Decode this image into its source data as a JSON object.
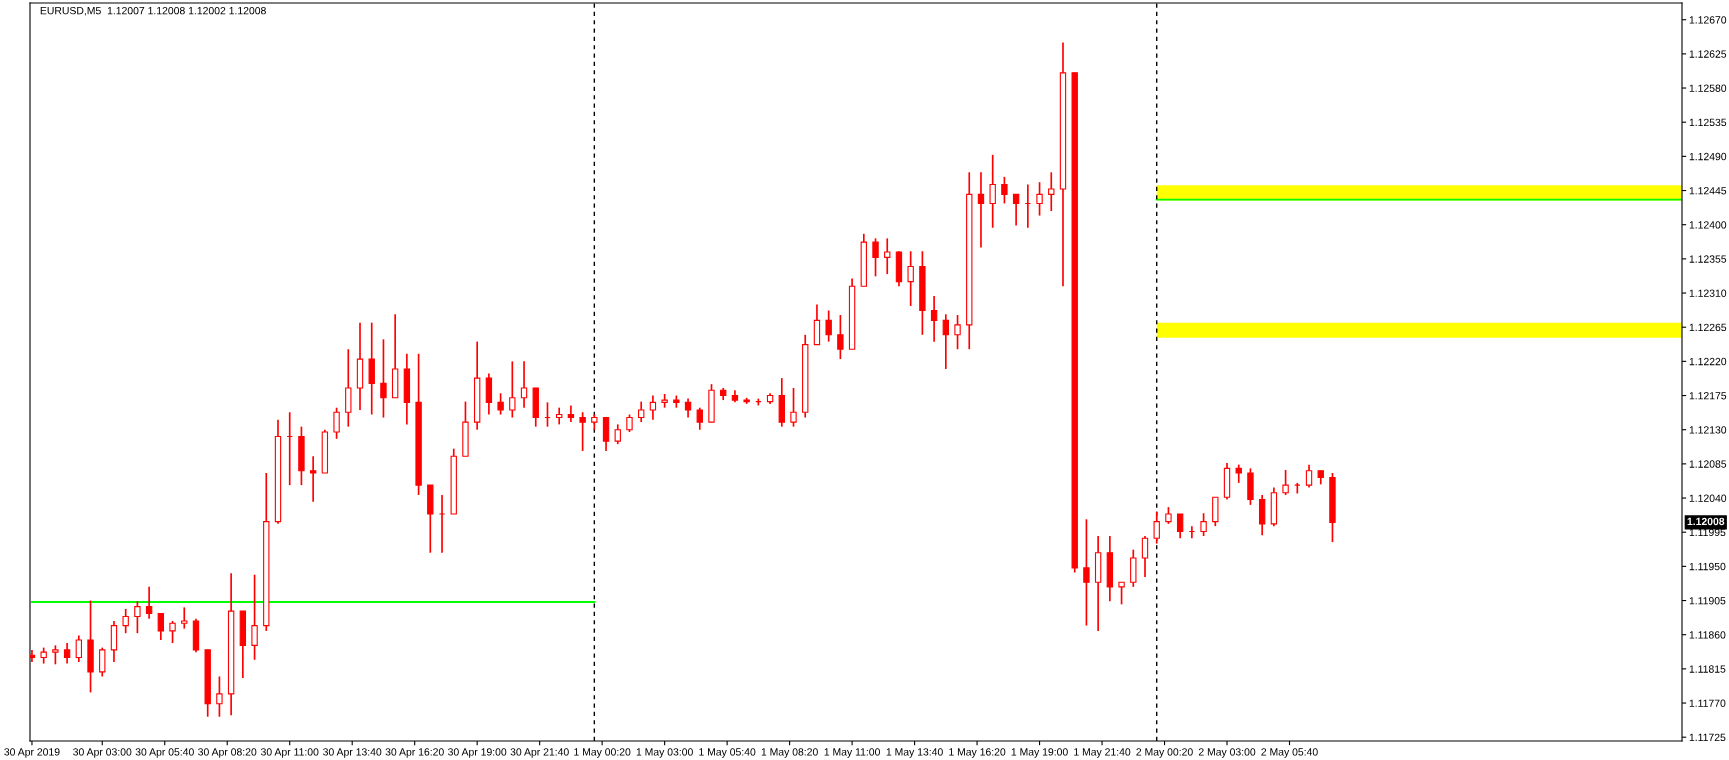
{
  "chart_data": {
    "type": "candlestick",
    "title": "EURUSD,M5  1.12007 1.12008 1.12002 1.12008",
    "color": "#ff0000",
    "x": [
      "2019-04-30T00:00",
      "2019-04-30T00:30",
      "2019-04-30T01:00",
      "2019-04-30T01:30",
      "2019-04-30T02:00",
      "2019-04-30T02:30",
      "2019-04-30T03:00",
      "2019-04-30T03:30",
      "2019-04-30T04:00",
      "2019-04-30T04:30",
      "2019-04-30T05:00",
      "2019-04-30T05:30",
      "2019-04-30T06:00",
      "2019-04-30T06:30",
      "2019-04-30T07:00",
      "2019-04-30T07:30",
      "2019-04-30T08:00",
      "2019-04-30T08:30",
      "2019-04-30T09:00",
      "2019-04-30T09:30",
      "2019-04-30T10:00",
      "2019-04-30T10:30",
      "2019-04-30T11:00",
      "2019-04-30T11:30",
      "2019-04-30T12:00",
      "2019-04-30T12:30",
      "2019-04-30T13:00",
      "2019-04-30T13:30",
      "2019-04-30T14:00",
      "2019-04-30T14:30",
      "2019-04-30T15:00",
      "2019-04-30T15:30",
      "2019-04-30T16:00",
      "2019-04-30T16:30",
      "2019-04-30T17:00",
      "2019-04-30T17:30",
      "2019-04-30T18:00",
      "2019-04-30T18:30",
      "2019-04-30T19:00",
      "2019-04-30T19:30",
      "2019-04-30T20:00",
      "2019-04-30T20:30",
      "2019-04-30T21:00",
      "2019-04-30T21:30",
      "2019-04-30T22:00",
      "2019-04-30T22:30",
      "2019-04-30T23:00",
      "2019-04-30T23:30",
      "2019-05-01T00:00",
      "2019-05-01T00:30",
      "2019-05-01T01:00",
      "2019-05-01T01:30",
      "2019-05-01T02:00",
      "2019-05-01T02:30",
      "2019-05-01T03:00",
      "2019-05-01T03:30",
      "2019-05-01T04:00",
      "2019-05-01T04:30",
      "2019-05-01T05:00",
      "2019-05-01T05:30",
      "2019-05-01T06:00",
      "2019-05-01T06:30",
      "2019-05-01T07:00",
      "2019-05-01T07:30",
      "2019-05-01T08:00",
      "2019-05-01T08:30",
      "2019-05-01T09:00",
      "2019-05-01T09:30",
      "2019-05-01T10:00",
      "2019-05-01T10:30",
      "2019-05-01T11:00",
      "2019-05-01T11:30",
      "2019-05-01T12:00",
      "2019-05-01T12:30",
      "2019-05-01T13:00",
      "2019-05-01T13:30",
      "2019-05-01T14:00",
      "2019-05-01T14:30",
      "2019-05-01T15:00",
      "2019-05-01T15:30",
      "2019-05-01T16:00",
      "2019-05-01T16:30",
      "2019-05-01T17:00",
      "2019-05-01T17:30",
      "2019-05-01T18:00",
      "2019-05-01T18:30",
      "2019-05-01T19:00",
      "2019-05-01T19:30",
      "2019-05-01T20:00",
      "2019-05-01T20:30",
      "2019-05-01T21:00",
      "2019-05-01T21:30",
      "2019-05-01T22:00",
      "2019-05-01T22:30",
      "2019-05-01T23:00",
      "2019-05-01T23:30",
      "2019-05-02T00:00",
      "2019-05-02T00:30",
      "2019-05-02T01:00",
      "2019-05-02T01:30",
      "2019-05-02T02:00",
      "2019-05-02T02:30",
      "2019-05-02T03:00",
      "2019-05-02T03:30",
      "2019-05-02T04:00",
      "2019-05-02T04:30",
      "2019-05-02T05:00",
      "2019-05-02T05:30",
      "2019-05-02T06:00",
      "2019-05-02T06:30",
      "2019-05-02T07:00",
      "2019-05-02T07:30"
    ],
    "ohlc": [
      [
        1.11833,
        1.1184,
        1.11824,
        1.1183
      ],
      [
        1.1183,
        1.11843,
        1.11822,
        1.11837
      ],
      [
        1.11837,
        1.11846,
        1.11821,
        1.1184
      ],
      [
        1.1184,
        1.11849,
        1.11822,
        1.1183
      ],
      [
        1.1183,
        1.11859,
        1.11824,
        1.11853
      ],
      [
        1.11853,
        1.11905,
        1.11784,
        1.11811
      ],
      [
        1.11811,
        1.11843,
        1.11805,
        1.1184
      ],
      [
        1.1184,
        1.11878,
        1.11824,
        1.11872
      ],
      [
        1.11872,
        1.11894,
        1.11862,
        1.11884
      ],
      [
        1.11884,
        1.11904,
        1.11862,
        1.11897
      ],
      [
        1.11897,
        1.11923,
        1.11881,
        1.11888
      ],
      [
        1.11888,
        1.11888,
        1.11853,
        1.11865
      ],
      [
        1.11865,
        1.11878,
        1.11849,
        1.11875
      ],
      [
        1.11875,
        1.11896,
        1.11868,
        1.11878
      ],
      [
        1.11878,
        1.11881,
        1.11837,
        1.1184
      ],
      [
        1.1184,
        1.1184,
        1.11752,
        1.11769
      ],
      [
        1.11769,
        1.11805,
        1.11752,
        1.11782
      ],
      [
        1.11782,
        1.11941,
        1.11754,
        1.11891
      ],
      [
        1.11891,
        1.11891,
        1.11803,
        1.11846
      ],
      [
        1.11846,
        1.11939,
        1.11827,
        1.11872
      ],
      [
        1.11872,
        1.12073,
        1.11865,
        1.12009
      ],
      [
        1.12009,
        1.12143,
        1.12006,
        1.12121
      ],
      [
        1.12121,
        1.12153,
        1.12057,
        1.12121
      ],
      [
        1.12121,
        1.12134,
        1.12057,
        1.12076
      ],
      [
        1.12076,
        1.12095,
        1.12035,
        1.12073
      ],
      [
        1.12073,
        1.1213,
        1.12073,
        1.12127
      ],
      [
        1.12127,
        1.12159,
        1.12118,
        1.12153
      ],
      [
        1.12153,
        1.12236,
        1.12134,
        1.12185
      ],
      [
        1.12185,
        1.12271,
        1.12156,
        1.12223
      ],
      [
        1.12223,
        1.12271,
        1.1215,
        1.12191
      ],
      [
        1.12191,
        1.12249,
        1.12146,
        1.12172
      ],
      [
        1.12172,
        1.12282,
        1.12172,
        1.1221
      ],
      [
        1.1221,
        1.1223,
        1.12137,
        1.12166
      ],
      [
        1.12166,
        1.1223,
        1.12044,
        1.12057
      ],
      [
        1.12057,
        1.12057,
        1.11968,
        1.12019
      ],
      [
        1.12019,
        1.12044,
        1.11968,
        1.12019
      ],
      [
        1.12019,
        1.12105,
        1.12019,
        1.12095
      ],
      [
        1.12095,
        1.12167,
        1.12095,
        1.1214
      ],
      [
        1.1214,
        1.12246,
        1.1213,
        1.12198
      ],
      [
        1.12198,
        1.12204,
        1.1215,
        1.12166
      ],
      [
        1.12166,
        1.12178,
        1.1215,
        1.12156
      ],
      [
        1.12156,
        1.1222,
        1.12146,
        1.12172
      ],
      [
        1.12172,
        1.1222,
        1.12159,
        1.12185
      ],
      [
        1.12185,
        1.12185,
        1.12134,
        1.12146
      ],
      [
        1.12146,
        1.12166,
        1.12134,
        1.12146
      ],
      [
        1.12146,
        1.12159,
        1.12137,
        1.1215
      ],
      [
        1.1215,
        1.12162,
        1.1214,
        1.12146
      ],
      [
        1.12146,
        1.12153,
        1.12102,
        1.1214
      ],
      [
        1.1214,
        1.1215,
        1.1213,
        1.12146
      ],
      [
        1.12146,
        1.12146,
        1.12102,
        1.12115
      ],
      [
        1.12115,
        1.12137,
        1.12111,
        1.1213
      ],
      [
        1.1213,
        1.1215,
        1.12127,
        1.12146
      ],
      [
        1.12146,
        1.12167,
        1.1214,
        1.12156
      ],
      [
        1.12156,
        1.12175,
        1.12143,
        1.12166
      ],
      [
        1.12166,
        1.12177,
        1.12159,
        1.12169
      ],
      [
        1.12169,
        1.12175,
        1.12159,
        1.12166
      ],
      [
        1.12166,
        1.12171,
        1.12146,
        1.12156
      ],
      [
        1.12156,
        1.12159,
        1.1213,
        1.1214
      ],
      [
        1.1214,
        1.1219,
        1.1214,
        1.12182
      ],
      [
        1.12182,
        1.12185,
        1.12169,
        1.12175
      ],
      [
        1.12175,
        1.12182,
        1.12166,
        1.12169
      ],
      [
        1.12169,
        1.12172,
        1.12164,
        1.12167
      ],
      [
        1.12167,
        1.12171,
        1.12162,
        1.12167
      ],
      [
        1.12167,
        1.12178,
        1.12164,
        1.12175
      ],
      [
        1.12175,
        1.12198,
        1.12134,
        1.1214
      ],
      [
        1.1214,
        1.12185,
        1.12134,
        1.12153
      ],
      [
        1.12153,
        1.12255,
        1.12146,
        1.12242
      ],
      [
        1.12242,
        1.12295,
        1.12242,
        1.12274
      ],
      [
        1.12274,
        1.12287,
        1.12246,
        1.12255
      ],
      [
        1.12255,
        1.12281,
        1.12223,
        1.12236
      ],
      [
        1.12236,
        1.12329,
        1.12236,
        1.12319
      ],
      [
        1.12319,
        1.12388,
        1.12319,
        1.12377
      ],
      [
        1.12377,
        1.12382,
        1.12332,
        1.12357
      ],
      [
        1.12357,
        1.12382,
        1.12335,
        1.12364
      ],
      [
        1.12364,
        1.12365,
        1.12319,
        1.12325
      ],
      [
        1.12325,
        1.12365,
        1.12293,
        1.12345
      ],
      [
        1.12345,
        1.12365,
        1.12255,
        1.12287
      ],
      [
        1.12287,
        1.12306,
        1.12246,
        1.12274
      ],
      [
        1.12274,
        1.12282,
        1.1221,
        1.12255
      ],
      [
        1.12255,
        1.12281,
        1.12236,
        1.12268
      ],
      [
        1.12268,
        1.12469,
        1.12236,
        1.1244
      ],
      [
        1.1244,
        1.12469,
        1.1237,
        1.12428
      ],
      [
        1.12428,
        1.12492,
        1.12396,
        1.12453
      ],
      [
        1.12453,
        1.12463,
        1.12428,
        1.1244
      ],
      [
        1.1244,
        1.1244,
        1.12399,
        1.12428
      ],
      [
        1.12428,
        1.12453,
        1.12396,
        1.12428
      ],
      [
        1.12428,
        1.12456,
        1.12412,
        1.1244
      ],
      [
        1.1244,
        1.12469,
        1.12418,
        1.12447
      ],
      [
        1.12447,
        1.1264,
        1.12319,
        1.126
      ],
      [
        1.126,
        1.126,
        1.11942,
        1.11948
      ],
      [
        1.11948,
        1.12012,
        1.11872,
        1.11929
      ],
      [
        1.11929,
        1.1199,
        1.11865,
        1.11968
      ],
      [
        1.11968,
        1.1199,
        1.11904,
        1.11923
      ],
      [
        1.11923,
        1.11929,
        1.119,
        1.11929
      ],
      [
        1.11929,
        1.11972,
        1.11923,
        1.11961
      ],
      [
        1.11961,
        1.1199,
        1.11936,
        1.11987
      ],
      [
        1.11987,
        1.12022,
        1.1198,
        1.12009
      ],
      [
        1.12009,
        1.12028,
        1.12006,
        1.12019
      ],
      [
        1.12019,
        1.12019,
        1.11987,
        1.11996
      ],
      [
        1.11996,
        1.12003,
        1.11987,
        1.11996
      ],
      [
        1.11996,
        1.1202,
        1.1199,
        1.12009
      ],
      [
        1.12009,
        1.12041,
        1.12003,
        1.12041
      ],
      [
        1.12041,
        1.12086,
        1.12038,
        1.12079
      ],
      [
        1.12079,
        1.12084,
        1.1206,
        1.12073
      ],
      [
        1.12073,
        1.12079,
        1.12031,
        1.12038
      ],
      [
        1.12038,
        1.12044,
        1.11991,
        1.12006
      ],
      [
        1.12006,
        1.12054,
        1.12003,
        1.12047
      ],
      [
        1.12047,
        1.12077,
        1.12044,
        1.12057
      ],
      [
        1.12057,
        1.1206,
        1.12046,
        1.12057
      ],
      [
        1.12057,
        1.12084,
        1.12054,
        1.12076
      ],
      [
        1.12076,
        1.12076,
        1.12058,
        1.12067
      ],
      [
        1.12067,
        1.12073,
        1.11982,
        1.12008
      ]
    ],
    "series": [
      {
        "type": "line",
        "color": "#00ff00",
        "x": [
          "2019-04-30T00:00",
          "2019-05-01T00:00"
        ],
        "values": [
          1.11903,
          1.11903
        ]
      },
      {
        "type": "line",
        "color": "#00ff00",
        "x": [
          "2019-05-02T00:00",
          "2019-05-02T22:25"
        ],
        "values": [
          1.12433,
          1.12433
        ]
      }
    ],
    "ref_lines": [
      {
        "axis": "x",
        "value": "2019-05-01T00:00",
        "color": "#000000",
        "line_style": "dashed"
      },
      {
        "axis": "x",
        "value": "2019-05-02T00:00",
        "color": "#000000",
        "line_style": "dashed"
      }
    ],
    "bands": [
      {
        "axis": "y",
        "from": 1.12432,
        "to": 1.12452,
        "color": "#ffff00"
      },
      {
        "axis": "y",
        "from": 1.12251,
        "to": 1.12271,
        "color": "#ffff00"
      }
    ],
    "annotations": [
      "1.12008"
    ],
    "xlim": [
      "2019-04-29T23:55",
      "2019-05-02T22:25"
    ],
    "xticks": [
      {
        "value": "2019-04-30T00:00",
        "label": "30 Apr 2019"
      },
      {
        "value": "2019-04-30T03:00",
        "label": "30 Apr 03:00"
      },
      {
        "value": "2019-04-30T05:40",
        "label": "30 Apr 05:40"
      },
      {
        "value": "2019-04-30T08:20",
        "label": "30 Apr 08:20"
      },
      {
        "value": "2019-04-30T11:00",
        "label": "30 Apr 11:00"
      },
      {
        "value": "2019-04-30T13:40",
        "label": "30 Apr 13:40"
      },
      {
        "value": "2019-04-30T16:20",
        "label": "30 Apr 16:20"
      },
      {
        "value": "2019-04-30T19:00",
        "label": "30 Apr 19:00"
      },
      {
        "value": "2019-04-30T21:40",
        "label": "30 Apr 21:40"
      },
      {
        "value": "2019-05-01T00:20",
        "label": "1 May 00:20"
      },
      {
        "value": "2019-05-01T03:00",
        "label": "1 May 03:00"
      },
      {
        "value": "2019-05-01T05:40",
        "label": "1 May 05:40"
      },
      {
        "value": "2019-05-01T08:20",
        "label": "1 May 08:20"
      },
      {
        "value": "2019-05-01T11:00",
        "label": "1 May 11:00"
      },
      {
        "value": "2019-05-01T13:40",
        "label": "1 May 13:40"
      },
      {
        "value": "2019-05-01T16:20",
        "label": "1 May 16:20"
      },
      {
        "value": "2019-05-01T19:00",
        "label": "1 May 19:00"
      },
      {
        "value": "2019-05-01T21:40",
        "label": "1 May 21:40"
      },
      {
        "value": "2019-05-02T00:20",
        "label": "2 May 00:20"
      },
      {
        "value": "2019-05-02T03:00",
        "label": "2 May 03:00"
      },
      {
        "value": "2019-05-02T05:40",
        "label": "2 May 05:40"
      }
    ],
    "ylim": [
      1.1172,
      1.12692
    ],
    "yticks": [
      1.11725,
      {
        "value": 1.1177,
        "label": "1.11770"
      },
      1.11815,
      {
        "value": 1.1186,
        "label": "1.11860"
      },
      1.11905,
      {
        "value": 1.1195,
        "label": "1.11950"
      },
      1.11995,
      {
        "value": 1.1204,
        "label": "1.12040"
      },
      1.12085,
      {
        "value": 1.1213,
        "label": "1.12130"
      },
      1.12175,
      {
        "value": 1.1222,
        "label": "1.12220"
      },
      1.12265,
      {
        "value": 1.1231,
        "label": "1.12310"
      },
      1.12355,
      {
        "value": 1.124,
        "label": "1.12400"
      },
      1.12445,
      {
        "value": 1.1249,
        "label": "1.12490"
      },
      1.12535,
      {
        "value": 1.1258,
        "label": "1.12580"
      },
      1.12625,
      {
        "value": 1.1267,
        "label": "1.12670"
      }
    ],
    "grid": false,
    "legend": false
  }
}
